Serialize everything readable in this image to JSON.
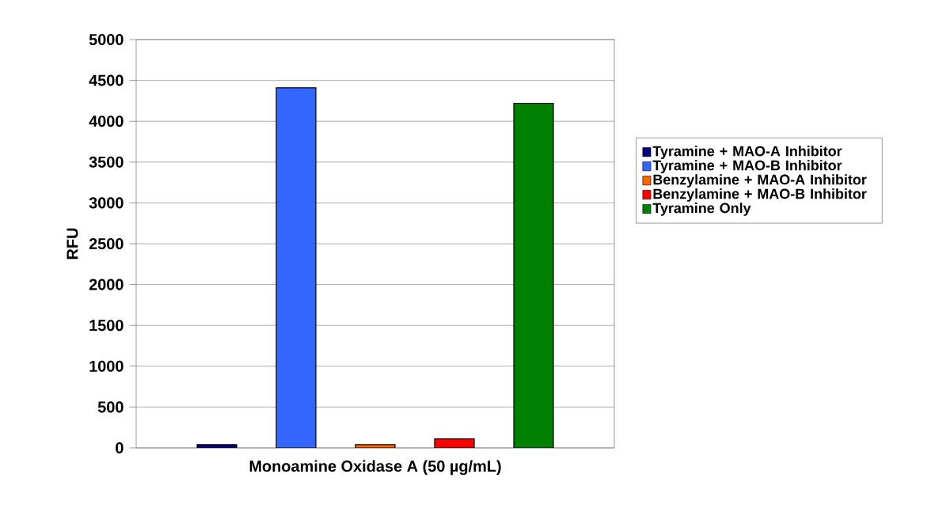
{
  "chart_data": {
    "type": "bar",
    "ylabel": "RFU",
    "categories": [
      "Monoamine Oxidase A (50 µg/mL)"
    ],
    "series": [
      {
        "name": "Tyramine + MAO-A Inhibitor",
        "color": "#000080",
        "values": [
          40
        ]
      },
      {
        "name": "Tyramine + MAO-B Inhibitor",
        "color": "#3366ff",
        "values": [
          4410
        ]
      },
      {
        "name": "Benzylamine + MAO-A Inhibitor",
        "color": "#ff6600",
        "values": [
          40
        ]
      },
      {
        "name": "Benzylamine + MAO-B Inhibitor",
        "color": "#ff0000",
        "values": [
          110
        ]
      },
      {
        "name": "Tyramine Only",
        "color": "#008000",
        "values": [
          4220
        ]
      }
    ],
    "ylim": [
      0,
      5000
    ],
    "yticks": [
      0,
      500,
      1000,
      1500,
      2000,
      2500,
      3000,
      3500,
      4000,
      4500,
      5000
    ],
    "grid": "y",
    "legend": "right"
  }
}
